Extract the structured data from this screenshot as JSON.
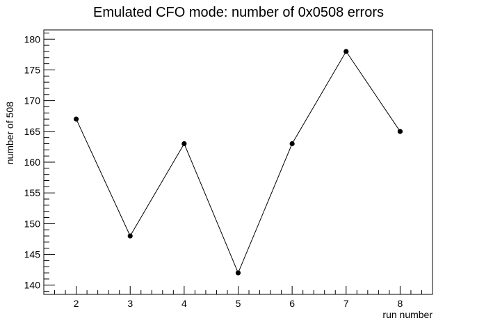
{
  "chart_data": {
    "type": "line",
    "title": "Emulated CFO mode: number of 0x0508 errors",
    "xlabel": "run number",
    "ylabel": "number of 508",
    "x": [
      2,
      3,
      4,
      5,
      6,
      7,
      8
    ],
    "xlim": [
      1.4,
      8.6
    ],
    "ylim": [
      138.5,
      181.5
    ],
    "xticks": [
      2,
      3,
      4,
      5,
      6,
      7,
      8
    ],
    "yticks": [
      140,
      145,
      150,
      155,
      160,
      165,
      170,
      175,
      180
    ],
    "series": [
      {
        "values": [
          167,
          148,
          163,
          142,
          163,
          178,
          165
        ],
        "color": "#000000",
        "marker": "circle"
      }
    ],
    "grid": false,
    "legend": "none"
  }
}
